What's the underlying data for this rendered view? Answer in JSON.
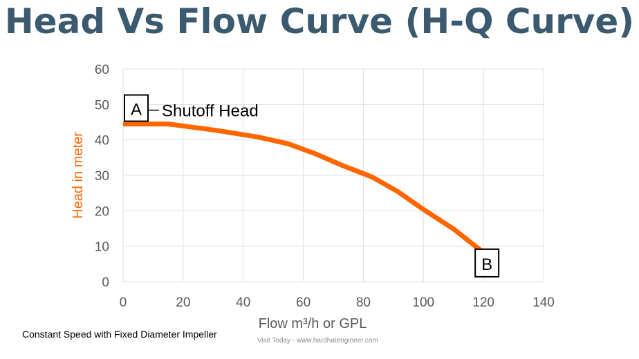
{
  "title": "Head Vs Flow Curve (H-Q Curve)",
  "footnote": "Constant Speed with Fixed Diameter Impeller",
  "credit": "Visit Today - www.hardhatengineer.com",
  "chart_data": {
    "type": "line",
    "title": "Head Vs Flow Curve (H-Q Curve)",
    "xlabel": "Flow m³/h or GPL",
    "ylabel": "Head in meter",
    "xlim": [
      0,
      140
    ],
    "ylim": [
      0,
      60
    ],
    "xticks": [
      "0",
      "20",
      "40",
      "60",
      "80",
      "100",
      "120",
      "140"
    ],
    "yticks": [
      "0",
      "10",
      "20",
      "30",
      "40",
      "50",
      "60"
    ],
    "grid": true,
    "series_color": "#ff6600",
    "ylabel_color": "#ff6600",
    "series": [
      {
        "x": [
          0,
          15,
          31,
          45,
          55,
          64,
          73,
          83,
          91.5,
          100.5,
          110,
          120
        ],
        "y": [
          44.5,
          44.5,
          42.7,
          40.8,
          38.9,
          36.1,
          32.8,
          29.5,
          25.4,
          20.1,
          14.9,
          8.2
        ]
      }
    ],
    "annotations": [
      {
        "label": "A",
        "x": 0,
        "y": 44.5,
        "text": "Shutoff Head"
      },
      {
        "label": "B",
        "x": 120,
        "y": 8.2
      }
    ]
  }
}
